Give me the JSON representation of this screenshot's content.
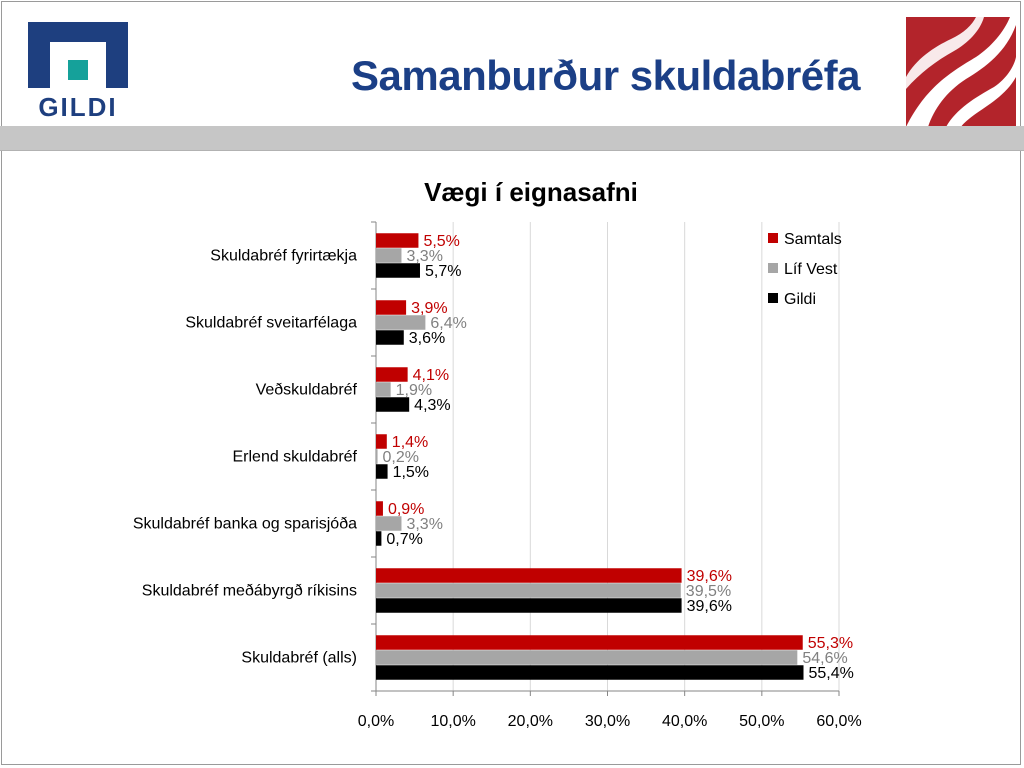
{
  "page": {
    "title": "Samanburður skuldabréfa",
    "logo_left_text": "GILDI"
  },
  "colors": {
    "title": "#1b3f86",
    "logo_blue": "#1e3f7f",
    "logo_teal": "#15a19a",
    "logo_red": "#b3242b",
    "band": "#c6c6c6"
  },
  "chart_data": {
    "type": "bar",
    "orientation": "horizontal",
    "title": "Vægi í eignasafni",
    "categories": [
      "Skuldabréf fyrirtækja",
      "Skuldabréf sveitarfélaga",
      "Veðskuldabréf",
      "Erlend skuldabréf",
      "Skuldabréf banka og sparisjóða",
      "Skuldabréf meðábyrgð ríkisins",
      "Skuldabréf (alls)"
    ],
    "series": [
      {
        "name": "Samtals",
        "color": "#c00000",
        "values": [
          5.5,
          3.9,
          4.1,
          1.4,
          0.9,
          39.6,
          55.3
        ],
        "labels": [
          "5,5%",
          "3,9%",
          "4,1%",
          "1,4%",
          "0,9%",
          "39,6%",
          "55,3%"
        ]
      },
      {
        "name": "Líf Vest",
        "color": "#a6a6a6",
        "label_color": "#808080",
        "values": [
          3.3,
          6.4,
          1.9,
          0.2,
          3.3,
          39.5,
          54.6
        ],
        "labels": [
          "3,3%",
          "6,4%",
          "1,9%",
          "0,2%",
          "3,3%",
          "39,5%",
          "54,6%"
        ]
      },
      {
        "name": "Gildi",
        "color": "#000000",
        "values": [
          5.7,
          3.6,
          4.3,
          1.5,
          0.7,
          39.6,
          55.4
        ],
        "labels": [
          "5,7%",
          "3,6%",
          "4,3%",
          "1,5%",
          "0,7%",
          "39,6%",
          "55,4%"
        ]
      }
    ],
    "x_ticks": [
      0,
      10,
      20,
      30,
      40,
      50,
      60
    ],
    "x_tick_labels": [
      "0,0%",
      "10,0%",
      "20,0%",
      "30,0%",
      "40,0%",
      "50,0%",
      "60,0%"
    ],
    "xlim": [
      0,
      60
    ],
    "grid": true,
    "legend_position": "top-right"
  }
}
